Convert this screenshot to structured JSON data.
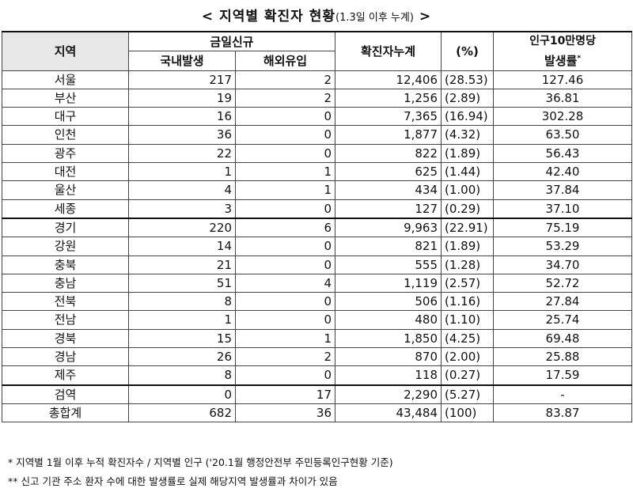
{
  "title": {
    "main": "< 지역별 확진자 현황",
    "sub": "(1.3일 이후 누계)",
    "end": " >"
  },
  "headers": {
    "region": "지역",
    "new_today": "금일신규",
    "domestic": "국내발생",
    "overseas": "해외유입",
    "cumulative": "확진자누계",
    "pct": "(%)",
    "rate_line1": "인구10만명당",
    "rate_line2": "발생률",
    "rate_mark": "*"
  },
  "rows": [
    {
      "region": "서울",
      "domestic": "217",
      "overseas": "2",
      "cumulative": "12,406",
      "pct": "(28.53)",
      "rate": "127.46"
    },
    {
      "region": "부산",
      "domestic": "19",
      "overseas": "2",
      "cumulative": "1,256",
      "pct": "(2.89)",
      "rate": "36.81"
    },
    {
      "region": "대구",
      "domestic": "16",
      "overseas": "0",
      "cumulative": "7,365",
      "pct": "(16.94)",
      "rate": "302.28"
    },
    {
      "region": "인천",
      "domestic": "36",
      "overseas": "0",
      "cumulative": "1,877",
      "pct": "(4.32)",
      "rate": "63.50"
    },
    {
      "region": "광주",
      "domestic": "22",
      "overseas": "0",
      "cumulative": "822",
      "pct": "(1.89)",
      "rate": "56.43"
    },
    {
      "region": "대전",
      "domestic": "1",
      "overseas": "1",
      "cumulative": "625",
      "pct": "(1.44)",
      "rate": "42.40"
    },
    {
      "region": "울산",
      "domestic": "4",
      "overseas": "1",
      "cumulative": "434",
      "pct": "(1.00)",
      "rate": "37.84"
    },
    {
      "region": "세종",
      "domestic": "3",
      "overseas": "0",
      "cumulative": "127",
      "pct": "(0.29)",
      "rate": "37.10"
    },
    {
      "region": "경기",
      "domestic": "220",
      "overseas": "6",
      "cumulative": "9,963",
      "pct": "(22.91)",
      "rate": "75.19"
    },
    {
      "region": "강원",
      "domestic": "14",
      "overseas": "0",
      "cumulative": "821",
      "pct": "(1.89)",
      "rate": "53.29"
    },
    {
      "region": "충북",
      "domestic": "21",
      "overseas": "0",
      "cumulative": "555",
      "pct": "(1.28)",
      "rate": "34.70"
    },
    {
      "region": "충남",
      "domestic": "51",
      "overseas": "4",
      "cumulative": "1,119",
      "pct": "(2.57)",
      "rate": "52.72"
    },
    {
      "region": "전북",
      "domestic": "8",
      "overseas": "0",
      "cumulative": "506",
      "pct": "(1.16)",
      "rate": "27.84"
    },
    {
      "region": "전남",
      "domestic": "1",
      "overseas": "0",
      "cumulative": "480",
      "pct": "(1.10)",
      "rate": "25.74"
    },
    {
      "region": "경북",
      "domestic": "15",
      "overseas": "1",
      "cumulative": "1,850",
      "pct": "(4.25)",
      "rate": "69.48"
    },
    {
      "region": "경남",
      "domestic": "26",
      "overseas": "2",
      "cumulative": "870",
      "pct": "(2.00)",
      "rate": "25.88"
    },
    {
      "region": "제주",
      "domestic": "8",
      "overseas": "0",
      "cumulative": "118",
      "pct": "(0.27)",
      "rate": "17.59"
    },
    {
      "region": "검역",
      "domestic": "0",
      "overseas": "17",
      "cumulative": "2,290",
      "pct": "(5.27)",
      "rate": "-"
    },
    {
      "region": "총합계",
      "domestic": "682",
      "overseas": "36",
      "cumulative": "43,484",
      "pct": "(100)",
      "rate": "83.87"
    }
  ],
  "notes": [
    "* 지역별 1월 이후 누적 확진자수 / 지역별 인구 ('20.1월 행정안전부 주민등록인구현황 기준)",
    "** 신고 기관 주소 환자 수에 대한 발생률로 실제 해당지역 발생률과 차이가 있음"
  ]
}
